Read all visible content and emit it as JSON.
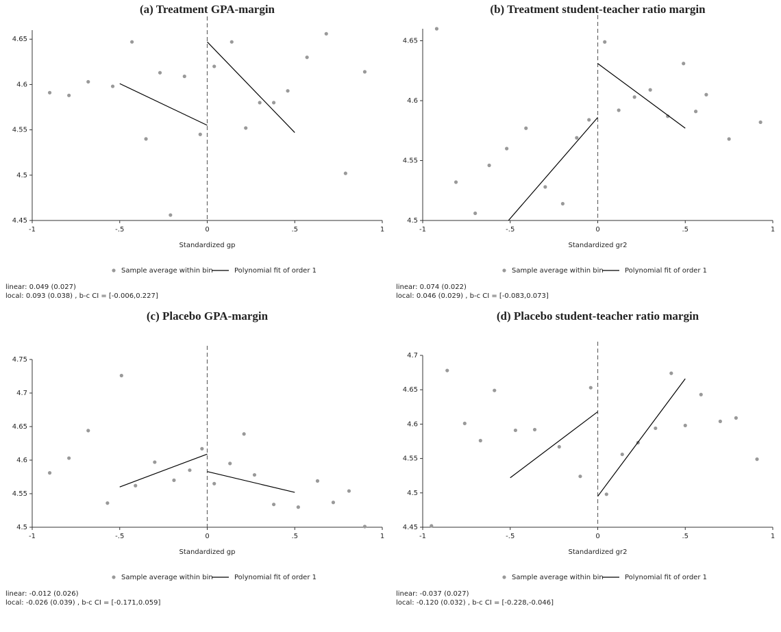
{
  "chart_data": [
    {
      "type": "scatter",
      "title": "(a) Treatment GPA-margin",
      "xlabel": "Standardized gp",
      "xlim": [
        -1,
        1
      ],
      "xticks": [
        -1,
        {
          "value": -0.5,
          "label": "-.5"
        },
        0,
        {
          "value": 0.5,
          "label": ".5"
        },
        1
      ],
      "ylim": [
        4.45,
        4.66
      ],
      "yticks": [
        4.45,
        4.5,
        4.55,
        4.6,
        4.65
      ],
      "cutoff": 0,
      "series": [
        {
          "name": "Sample average within bin",
          "color": "#999999",
          "x": [
            -0.9,
            -0.79,
            -0.68,
            -0.54,
            -0.43,
            -0.35,
            -0.27,
            -0.21,
            -0.13,
            -0.04,
            0.04,
            0.14,
            0.22,
            0.3,
            0.38,
            0.46,
            0.57,
            0.68,
            0.79,
            0.9
          ],
          "values": [
            4.591,
            4.588,
            4.603,
            4.598,
            4.647,
            4.54,
            4.613,
            4.456,
            4.609,
            4.545,
            4.62,
            4.647,
            4.552,
            4.58,
            4.58,
            4.593,
            4.63,
            4.656,
            4.502,
            4.614
          ]
        },
        {
          "name": "Polynomial fit of order 1",
          "color": "#000000",
          "x": [
            -0.5,
            0,
            null,
            0,
            0.5
          ],
          "values": [
            4.601,
            4.555,
            null,
            4.647,
            4.547
          ]
        }
      ],
      "notes": [
        "linear: 0.049 (0.027)",
        "local: 0.093 (0.038) , b-c CI = [-0.006,0.227]"
      ]
    },
    {
      "type": "scatter",
      "title": "(b) Treatment student-teacher ratio margin",
      "xlabel": "Standardized gr2",
      "xlim": [
        -1,
        1
      ],
      "xticks": [
        -1,
        {
          "value": -0.5,
          "label": "-.5"
        },
        0,
        {
          "value": 0.5,
          "label": ".5"
        },
        1
      ],
      "ylim": [
        4.5,
        4.66
      ],
      "yticks": [
        4.5,
        4.55,
        4.6,
        4.65
      ],
      "cutoff": 0,
      "series": [
        {
          "name": "Sample average within bin",
          "color": "#999999",
          "x": [
            -0.92,
            -0.81,
            -0.7,
            -0.62,
            -0.52,
            -0.41,
            -0.3,
            -0.2,
            -0.12,
            -0.05,
            0.04,
            0.12,
            0.21,
            0.3,
            0.4,
            0.49,
            0.56,
            0.62,
            0.75,
            0.93
          ],
          "values": [
            4.66,
            4.532,
            4.506,
            4.546,
            4.56,
            4.577,
            4.528,
            4.514,
            4.569,
            4.584,
            4.649,
            4.592,
            4.603,
            4.609,
            4.587,
            4.631,
            4.591,
            4.605,
            4.568,
            4.582
          ]
        },
        {
          "name": "Polynomial fit of order 1",
          "color": "#000000",
          "x": [
            -0.51,
            0,
            null,
            0,
            0.5
          ],
          "values": [
            4.5,
            4.586,
            null,
            4.631,
            4.577
          ]
        }
      ],
      "notes": [
        "linear: 0.074 (0.022)",
        "local: 0.046 (0.029) , b-c CI = [-0.083,0.073]"
      ]
    },
    {
      "type": "scatter",
      "title": "(c) Placebo GPA-margin",
      "xlabel": "Standardized gp",
      "xlim": [
        -1,
        1
      ],
      "xticks": [
        -1,
        {
          "value": -0.5,
          "label": "-.5"
        },
        0,
        {
          "value": 0.5,
          "label": ".5"
        },
        1
      ],
      "ylim": [
        4.5,
        4.75
      ],
      "yticks": [
        4.5,
        4.55,
        4.6,
        4.65,
        4.7,
        4.75
      ],
      "cutoff": 0,
      "series": [
        {
          "name": "Sample average within bin",
          "color": "#999999",
          "x": [
            -0.9,
            -0.79,
            -0.68,
            -0.57,
            -0.49,
            -0.41,
            -0.3,
            -0.19,
            -0.1,
            -0.03,
            0.04,
            0.13,
            0.21,
            0.27,
            0.38,
            0.52,
            0.63,
            0.72,
            0.81,
            0.9
          ],
          "values": [
            4.581,
            4.603,
            4.644,
            4.536,
            4.726,
            4.562,
            4.597,
            4.57,
            4.585,
            4.617,
            4.565,
            4.595,
            4.639,
            4.578,
            4.534,
            4.53,
            4.569,
            4.537,
            4.554,
            4.501
          ]
        },
        {
          "name": "Polynomial fit of order 1",
          "color": "#000000",
          "x": [
            -0.5,
            0,
            null,
            0,
            0.5
          ],
          "values": [
            4.56,
            4.609,
            null,
            4.583,
            4.552
          ]
        }
      ],
      "notes": [
        "linear: -0.012 (0.026)",
        "local: -0.026 (0.039) , b-c CI = [-0.171,0.059]"
      ]
    },
    {
      "type": "scatter",
      "title": "(d) Placebo student-teacher ratio margin",
      "xlabel": "Standardized gr2",
      "xlim": [
        -1,
        1
      ],
      "xticks": [
        -1,
        {
          "value": -0.5,
          "label": "-.5"
        },
        0,
        {
          "value": 0.5,
          "label": ".5"
        },
        1
      ],
      "ylim": [
        4.45,
        4.7
      ],
      "yticks": [
        4.45,
        4.5,
        4.55,
        4.6,
        4.65,
        4.7
      ],
      "cutoff": 0,
      "series": [
        {
          "name": "Sample average within bin",
          "color": "#999999",
          "x": [
            -0.95,
            -0.86,
            -0.76,
            -0.67,
            -0.59,
            -0.47,
            -0.36,
            -0.22,
            -0.1,
            -0.04,
            0.05,
            0.14,
            0.23,
            0.33,
            0.42,
            0.5,
            0.59,
            0.7,
            0.79,
            0.91
          ],
          "values": [
            4.452,
            4.678,
            4.601,
            4.576,
            4.649,
            4.591,
            4.592,
            4.567,
            4.524,
            4.653,
            4.498,
            4.556,
            4.573,
            4.594,
            4.674,
            4.598,
            4.643,
            4.604,
            4.609,
            4.549
          ]
        },
        {
          "name": "Polynomial fit of order 1",
          "color": "#000000",
          "x": [
            -0.5,
            0,
            null,
            0,
            0.5
          ],
          "values": [
            4.522,
            4.618,
            null,
            4.495,
            4.666
          ]
        }
      ],
      "notes": [
        "linear: -0.037 (0.027)",
        "local: -0.120 (0.032) , b-c CI = [-0.228,-0.046]"
      ]
    }
  ]
}
